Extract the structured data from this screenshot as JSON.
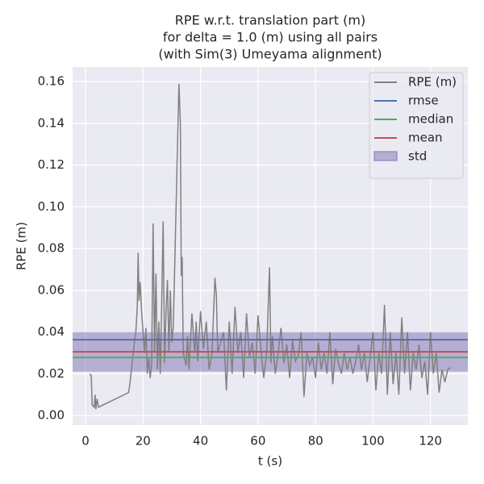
{
  "chart_data": {
    "type": "line",
    "title": [
      "RPE w.r.t. translation part (m)",
      "for delta = 1.0 (m) using all pairs",
      "(with Sim(3) Umeyama alignment)"
    ],
    "xlabel": "t (s)",
    "ylabel": "RPE (m)",
    "xlim": [
      -4.5,
      133
    ],
    "ylim": [
      -0.0046,
      0.167
    ],
    "xticks": [
      0,
      20,
      40,
      60,
      80,
      100,
      120
    ],
    "yticks": [
      {
        "value": 0,
        "label": "0.00"
      },
      0.02,
      0.04,
      0.06,
      0.08,
      {
        "value": 0.1,
        "label": "0.10"
      },
      0.12,
      0.14,
      0.16
    ],
    "grid": true,
    "legend": "upper right",
    "series": [
      {
        "name": "RPE (m)",
        "color": "#808080",
        "x": [
          1.5,
          2,
          2.3,
          3,
          3.3,
          3.6,
          4,
          4.5,
          15,
          15.5,
          17,
          17.5,
          18,
          18.3,
          18.6,
          19,
          19.5,
          20,
          20.5,
          21,
          21.5,
          22,
          22.5,
          23,
          23.5,
          24,
          24.5,
          25,
          25.5,
          26,
          26.5,
          27,
          27.5,
          28,
          28.5,
          29,
          29.5,
          30,
          30.5,
          31,
          31.5,
          32,
          32.5,
          33,
          33.3,
          33.6,
          34,
          35,
          35.5,
          36,
          37,
          38,
          38.5,
          39,
          40,
          41,
          42,
          43,
          44,
          45,
          45.5,
          46,
          47,
          48,
          49,
          50,
          51,
          52,
          53,
          54,
          55,
          56,
          57,
          58,
          59,
          60,
          61,
          62,
          63,
          64,
          64.5,
          65,
          66,
          67,
          68,
          69,
          70,
          71,
          72,
          73,
          74,
          75,
          76,
          77,
          78,
          79,
          80,
          81,
          82,
          83,
          84,
          85,
          86,
          87,
          88,
          89,
          90,
          91,
          92,
          93,
          94,
          95,
          96,
          97,
          98,
          99,
          100,
          101,
          102,
          103,
          104,
          105,
          106,
          107,
          108,
          109,
          110,
          111,
          112,
          113,
          114,
          115,
          116,
          117,
          118,
          119,
          120,
          121,
          122,
          123,
          124,
          125,
          126,
          127
        ],
        "values": [
          0.02,
          0.019,
          0.005,
          0.004,
          0.01,
          0.003,
          0.008,
          0.004,
          0.011,
          0.016,
          0.035,
          0.04,
          0.052,
          0.078,
          0.055,
          0.064,
          0.05,
          0.04,
          0.03,
          0.042,
          0.02,
          0.028,
          0.018,
          0.025,
          0.092,
          0.03,
          0.068,
          0.022,
          0.045,
          0.02,
          0.054,
          0.093,
          0.025,
          0.05,
          0.065,
          0.03,
          0.06,
          0.035,
          0.042,
          0.07,
          0.1,
          0.13,
          0.159,
          0.14,
          0.067,
          0.076,
          0.03,
          0.024,
          0.038,
          0.022,
          0.049,
          0.03,
          0.045,
          0.026,
          0.05,
          0.032,
          0.045,
          0.022,
          0.03,
          0.066,
          0.058,
          0.03,
          0.035,
          0.04,
          0.012,
          0.045,
          0.02,
          0.052,
          0.03,
          0.04,
          0.018,
          0.049,
          0.028,
          0.035,
          0.02,
          0.048,
          0.032,
          0.018,
          0.03,
          0.071,
          0.025,
          0.038,
          0.02,
          0.03,
          0.042,
          0.025,
          0.034,
          0.018,
          0.036,
          0.026,
          0.029,
          0.04,
          0.009,
          0.03,
          0.024,
          0.028,
          0.018,
          0.035,
          0.022,
          0.03,
          0.02,
          0.04,
          0.015,
          0.032,
          0.025,
          0.02,
          0.03,
          0.022,
          0.028,
          0.02,
          0.026,
          0.034,
          0.022,
          0.03,
          0.016,
          0.028,
          0.04,
          0.012,
          0.03,
          0.02,
          0.053,
          0.01,
          0.04,
          0.015,
          0.03,
          0.01,
          0.047,
          0.02,
          0.04,
          0.012,
          0.03,
          0.022,
          0.034,
          0.018,
          0.026,
          0.01,
          0.04,
          0.02,
          0.03,
          0.011,
          0.022,
          0.016,
          0.022,
          0.023
        ]
      }
    ],
    "hlines": [
      {
        "name": "rmse",
        "color": "#4c72b0",
        "value": 0.0363
      },
      {
        "name": "median",
        "color": "#55a868",
        "value": 0.0278
      },
      {
        "name": "mean",
        "color": "#c44e52",
        "value": 0.0305
      }
    ],
    "std": {
      "name": "std",
      "color": "#8172b2",
      "value": 0.0095
    }
  }
}
